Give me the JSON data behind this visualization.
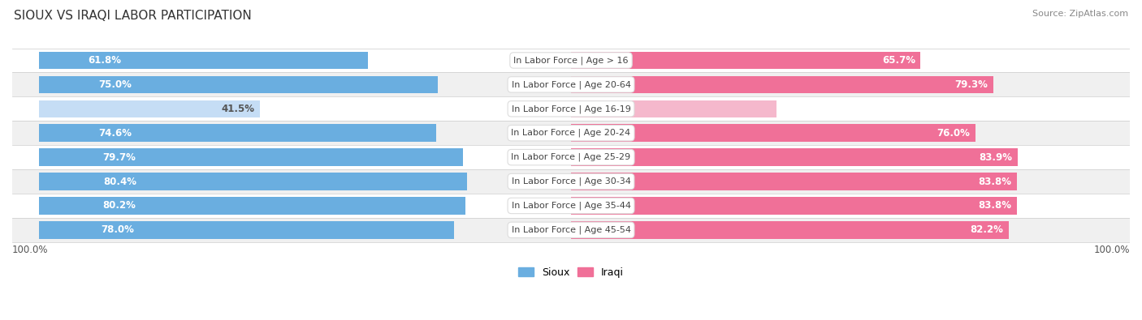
{
  "title": "SIOUX VS IRAQI LABOR PARTICIPATION",
  "source": "Source: ZipAtlas.com",
  "categories": [
    "In Labor Force | Age > 16",
    "In Labor Force | Age 20-64",
    "In Labor Force | Age 16-19",
    "In Labor Force | Age 20-24",
    "In Labor Force | Age 25-29",
    "In Labor Force | Age 30-34",
    "In Labor Force | Age 35-44",
    "In Labor Force | Age 45-54"
  ],
  "sioux_values": [
    61.8,
    75.0,
    41.5,
    74.6,
    79.7,
    80.4,
    80.2,
    78.0
  ],
  "iraqi_values": [
    65.7,
    79.3,
    38.6,
    76.0,
    83.9,
    83.8,
    83.8,
    82.2
  ],
  "sioux_color": "#6AAEE0",
  "sioux_color_light": "#C5DDF5",
  "iraqi_color": "#F07098",
  "iraqi_color_light": "#F5B8CC",
  "bg_color": "#FFFFFF",
  "row_color_odd": "#FFFFFF",
  "row_color_even": "#F0F0F0",
  "label_fontsize": 8.5,
  "cat_fontsize": 8,
  "title_fontsize": 11,
  "source_fontsize": 8
}
